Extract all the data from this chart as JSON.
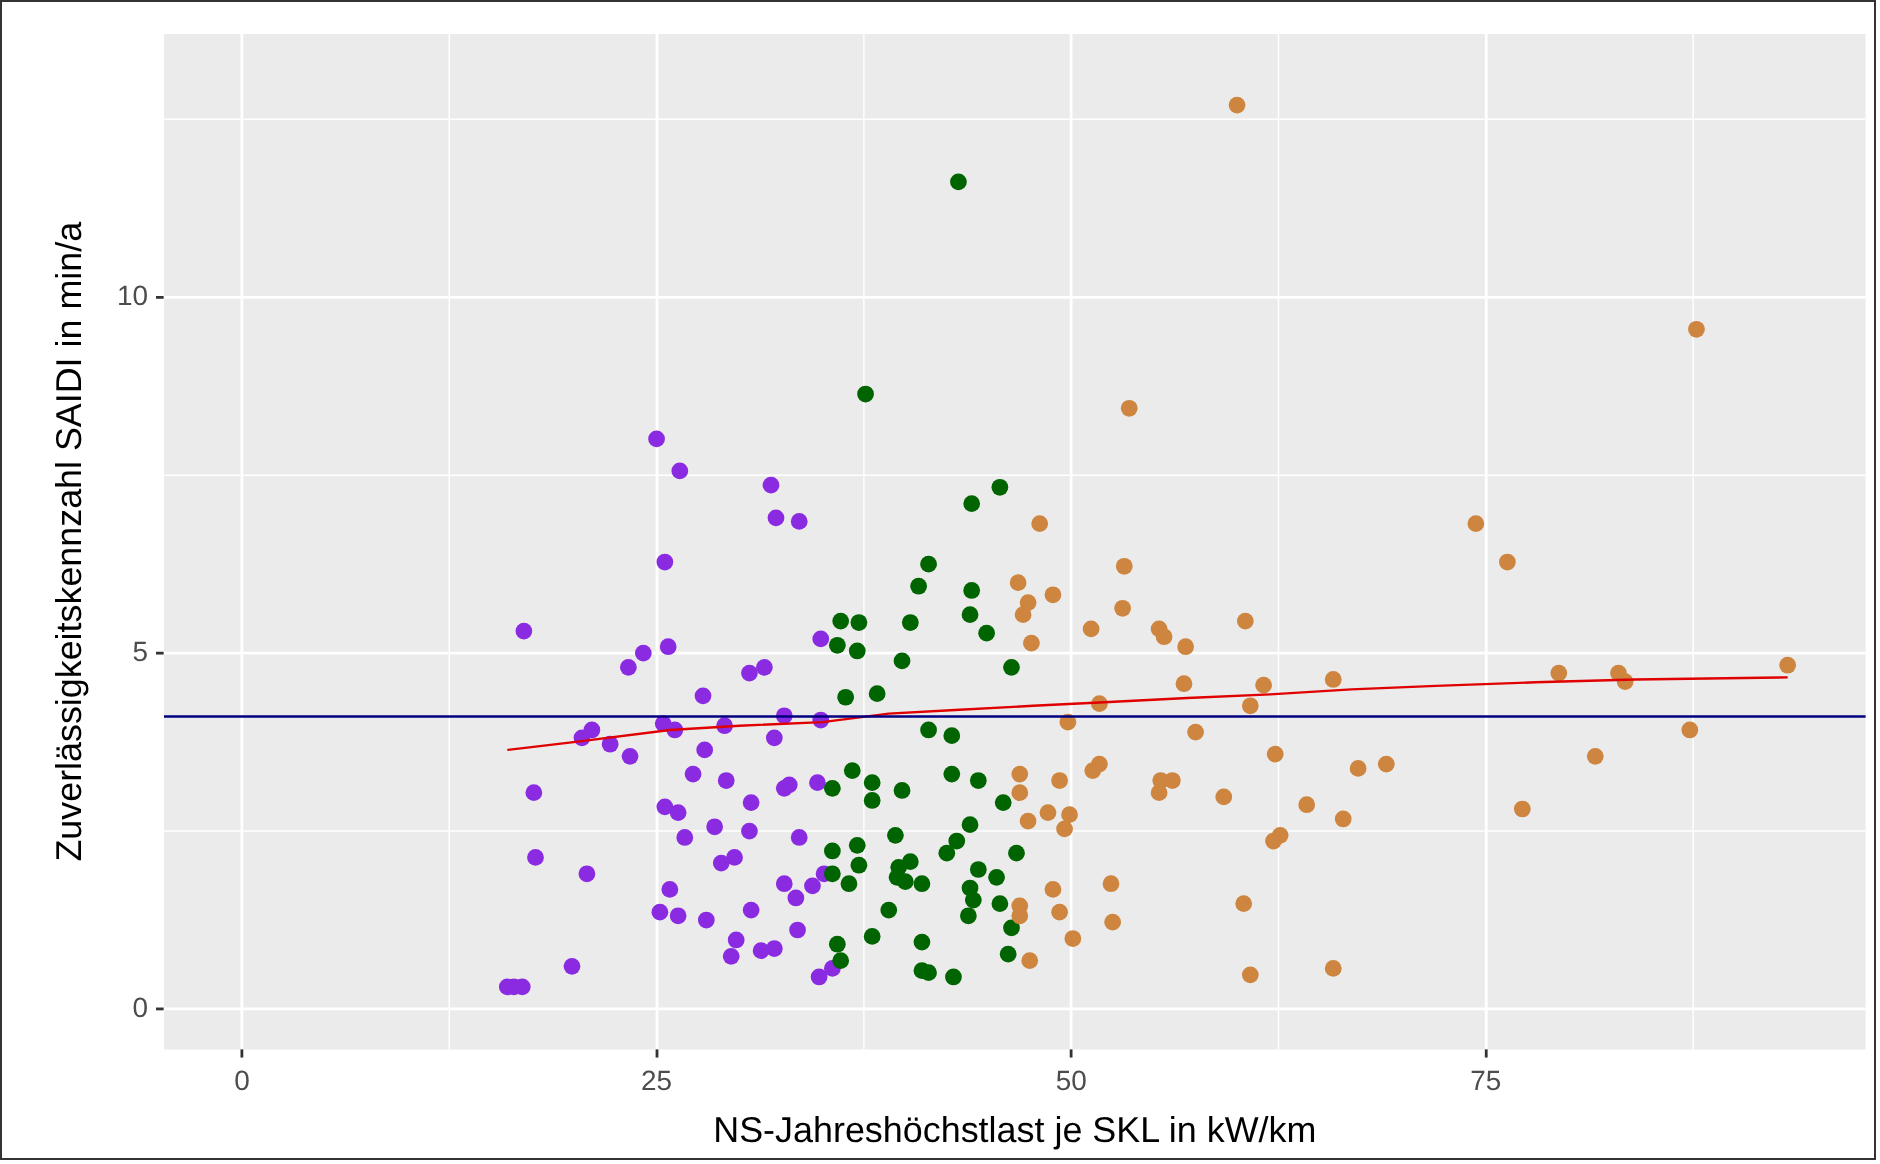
{
  "chart_data": {
    "type": "scatter",
    "xlabel": "NS-Jahreshöchstlast je SKL in kW/km",
    "ylabel": "Zuverlässigkeitskennzahl SAIDI in min/a",
    "xlim": [
      -4.7,
      97.9
    ],
    "ylim": [
      -0.57,
      13.7
    ],
    "xticks": [
      0,
      25,
      50,
      75
    ],
    "yticks": [
      0,
      5,
      10
    ],
    "grid": true,
    "legend": false,
    "marker": "circle",
    "series": [
      {
        "color": "#8a2be2",
        "x": [
          17.0,
          16.0,
          16.4,
          16.9,
          17.6,
          17.7,
          19.9,
          20.5,
          20.8,
          21.1,
          22.2,
          23.3,
          23.4,
          24.2,
          25.0,
          25.5,
          25.7,
          25.4,
          26.1,
          25.5,
          26.3,
          25.2,
          25.8,
          26.3,
          26.4,
          26.7,
          27.2,
          27.8,
          27.9,
          28.0,
          28.5,
          28.9,
          29.1,
          29.2,
          29.7,
          29.5,
          29.8,
          30.6,
          30.6,
          30.7,
          30.7,
          31.3,
          31.5,
          31.9,
          32.1,
          32.1,
          32.2,
          32.7,
          32.7,
          32.7,
          33.0,
          33.4,
          33.5,
          33.6,
          33.6,
          34.4,
          34.7,
          34.8,
          34.9,
          34.9,
          35.1,
          35.6
        ],
        "values": [
          5.31,
          0.31,
          0.31,
          0.31,
          3.04,
          2.13,
          0.6,
          3.81,
          1.9,
          3.92,
          3.72,
          4.8,
          3.55,
          5.0,
          8.01,
          6.28,
          5.09,
          4.01,
          3.92,
          2.84,
          2.76,
          1.36,
          1.68,
          1.31,
          7.56,
          2.41,
          3.3,
          4.4,
          3.64,
          1.25,
          2.56,
          2.05,
          3.98,
          3.21,
          2.13,
          0.74,
          0.97,
          4.72,
          2.5,
          2.9,
          1.39,
          0.82,
          4.8,
          7.36,
          3.81,
          0.85,
          6.9,
          4.12,
          3.1,
          1.76,
          3.15,
          1.56,
          1.11,
          6.85,
          2.41,
          1.73,
          3.18,
          0.45,
          5.2,
          4.06,
          1.9,
          0.57
        ]
      },
      {
        "color": "#006400",
        "x": [
          43.2,
          37.6,
          45.7,
          44.0,
          41.4,
          40.8,
          44.0,
          43.9,
          44.9,
          36.1,
          37.2,
          40.3,
          35.9,
          37.1,
          39.8,
          46.4,
          36.4,
          38.3,
          41.4,
          42.8,
          36.8,
          38.0,
          38.0,
          35.6,
          39.8,
          42.8,
          44.4,
          45.9,
          43.9,
          39.4,
          35.6,
          37.1,
          37.2,
          35.6,
          36.6,
          40.3,
          39.6,
          39.5,
          40.0,
          41.0,
          42.5,
          43.1,
          44.4,
          45.5,
          46.7,
          43.9,
          44.1,
          43.8,
          45.7,
          46.4,
          39.0,
          38.0,
          35.9,
          36.1,
          41.0,
          41.0,
          41.4,
          42.9,
          46.2
        ],
        "values": [
          11.62,
          8.64,
          7.33,
          7.1,
          6.25,
          5.94,
          5.88,
          5.54,
          5.28,
          5.45,
          5.43,
          5.43,
          5.11,
          5.03,
          4.89,
          4.8,
          4.38,
          4.43,
          3.92,
          3.84,
          3.35,
          3.18,
          2.93,
          3.1,
          3.07,
          3.3,
          3.21,
          2.9,
          2.59,
          2.44,
          2.22,
          2.3,
          2.02,
          1.9,
          1.76,
          2.07,
          1.99,
          1.85,
          1.79,
          1.76,
          2.19,
          2.36,
          1.96,
          1.85,
          2.19,
          1.7,
          1.53,
          1.31,
          1.48,
          1.14,
          1.39,
          1.02,
          0.91,
          0.68,
          0.94,
          0.54,
          0.51,
          0.45,
          0.77
        ]
      },
      {
        "color": "#cd853f",
        "x": [
          60.0,
          87.7,
          48.1,
          53.2,
          53.5,
          46.8,
          48.9,
          47.4,
          47.1,
          53.1,
          51.2,
          55.3,
          55.6,
          47.6,
          56.9,
          60.5,
          56.8,
          61.6,
          65.8,
          51.7,
          60.8,
          49.8,
          57.5,
          62.3,
          46.9,
          46.9,
          49.3,
          51.3,
          51.7,
          55.4,
          56.1,
          55.3,
          59.2,
          64.2,
          66.4,
          47.4,
          48.6,
          49.9,
          49.6,
          62.6,
          62.2,
          48.9,
          52.4,
          46.9,
          46.9,
          49.3,
          52.5,
          50.1,
          60.4,
          47.5,
          60.8,
          65.8,
          74.4,
          76.3,
          79.4,
          83.0,
          83.4,
          93.2,
          87.3,
          81.6,
          67.3,
          69.0,
          77.2
        ],
        "values": [
          12.7,
          9.55,
          6.82,
          6.22,
          8.44,
          5.99,
          5.82,
          5.71,
          5.54,
          5.63,
          5.34,
          5.34,
          5.23,
          5.14,
          5.09,
          5.45,
          4.57,
          4.55,
          4.63,
          4.29,
          4.26,
          4.03,
          3.89,
          3.58,
          3.3,
          3.04,
          3.21,
          3.35,
          3.44,
          3.21,
          3.21,
          3.04,
          2.98,
          2.87,
          2.67,
          2.64,
          2.76,
          2.73,
          2.53,
          2.44,
          2.36,
          1.68,
          1.76,
          1.45,
          1.31,
          1.36,
          1.22,
          0.99,
          1.48,
          0.68,
          0.48,
          0.57,
          6.82,
          6.28,
          4.72,
          4.72,
          4.6,
          4.83,
          3.92,
          3.55,
          3.38,
          3.44,
          2.81
        ]
      },
      {
        "type": "line",
        "marker": "none",
        "color": "#e00000",
        "x": [
          16.0,
          20.0,
          25.8,
          30.0,
          35.0,
          39.0,
          43.0,
          47.7,
          52.0,
          57.0,
          62.0,
          66.9,
          72.0,
          78.0,
          84.0,
          93.2
        ],
        "values": [
          3.64,
          3.75,
          3.92,
          3.98,
          4.03,
          4.15,
          4.2,
          4.26,
          4.31,
          4.37,
          4.42,
          4.49,
          4.54,
          4.59,
          4.63,
          4.66
        ]
      }
    ],
    "ref_lines": [
      {
        "axis": "y",
        "value": 4.11,
        "color": "#000080"
      }
    ]
  }
}
